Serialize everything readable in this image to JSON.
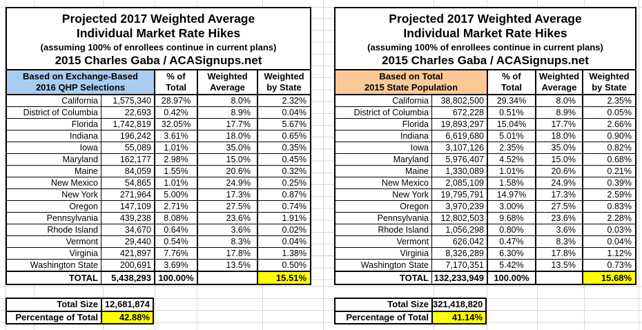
{
  "colors": {
    "header_blue": "#a9cdee",
    "header_orange": "#fbc998",
    "highlight_yellow": "#ffff00",
    "gridline": "#d8d8d8",
    "border": "#000000"
  },
  "tables": [
    {
      "title_lines": [
        "Projected 2017 Weighted Average",
        "Individual Market Rate Hikes"
      ],
      "subtitle": "(assuming 100% of enrollees continue in current plans)",
      "byline": "2015 Charles Gaba / ACASignups.net",
      "group_header": [
        "Based on Exchange-Based",
        "2016 QHP Selections"
      ],
      "group_header_color": "#a9cdee",
      "columns": [
        [
          "% of",
          "Total"
        ],
        [
          "Weighted",
          "Average"
        ],
        [
          "Weighted",
          "by State"
        ]
      ],
      "rows": [
        {
          "state": "California",
          "size": "1,575,340",
          "pct_of_total": "28.97%",
          "weighted_average": "8.0%",
          "weighted_by_state": "2.32%"
        },
        {
          "state": "District of Columbia",
          "size": "22,693",
          "pct_of_total": "0.42%",
          "weighted_average": "8.9%",
          "weighted_by_state": "0.04%"
        },
        {
          "state": "Florida",
          "size": "1,742,819",
          "pct_of_total": "32.05%",
          "weighted_average": "17.7%",
          "weighted_by_state": "5.67%"
        },
        {
          "state": "Indiana",
          "size": "196,242",
          "pct_of_total": "3.61%",
          "weighted_average": "18.0%",
          "weighted_by_state": "0.65%"
        },
        {
          "state": "Iowa",
          "size": "55,089",
          "pct_of_total": "1.01%",
          "weighted_average": "35.0%",
          "weighted_by_state": "0.35%"
        },
        {
          "state": "Maryland",
          "size": "162,177",
          "pct_of_total": "2.98%",
          "weighted_average": "15.0%",
          "weighted_by_state": "0.45%"
        },
        {
          "state": "Maine",
          "size": "84,059",
          "pct_of_total": "1.55%",
          "weighted_average": "20.6%",
          "weighted_by_state": "0.32%"
        },
        {
          "state": "New Mexico",
          "size": "54,865",
          "pct_of_total": "1.01%",
          "weighted_average": "24.9%",
          "weighted_by_state": "0.25%"
        },
        {
          "state": "New York",
          "size": "271,964",
          "pct_of_total": "5.00%",
          "weighted_average": "17.3%",
          "weighted_by_state": "0.87%"
        },
        {
          "state": "Oregon",
          "size": "147,109",
          "pct_of_total": "2.71%",
          "weighted_average": "27.5%",
          "weighted_by_state": "0.74%"
        },
        {
          "state": "Pennsylvania",
          "size": "439,238",
          "pct_of_total": "8.08%",
          "weighted_average": "23.6%",
          "weighted_by_state": "1.91%"
        },
        {
          "state": "Rhode Island",
          "size": "34,670",
          "pct_of_total": "0.64%",
          "weighted_average": "3.6%",
          "weighted_by_state": "0.02%"
        },
        {
          "state": "Vermont",
          "size": "29,440",
          "pct_of_total": "0.54%",
          "weighted_average": "8.3%",
          "weighted_by_state": "0.04%"
        },
        {
          "state": "Virginia",
          "size": "421,897",
          "pct_of_total": "7.76%",
          "weighted_average": "17.8%",
          "weighted_by_state": "1.38%"
        },
        {
          "state": "Washington State",
          "size": "200,691",
          "pct_of_total": "3.69%",
          "weighted_average": "13.5%",
          "weighted_by_state": "0.50%"
        }
      ],
      "total_row": {
        "label": "TOTAL",
        "size": "5,438,293",
        "pct_of_total": "100.00%",
        "weighted_average": "",
        "weighted_by_state": "15.51%"
      },
      "summary": {
        "total_size_label": "Total Size",
        "total_size_value": "12,681,874",
        "pct_of_total_label": "Percentage of Total",
        "pct_of_total_value": "42.88%"
      }
    },
    {
      "title_lines": [
        "Projected 2017 Weighted Average",
        "Individual Market Rate Hikes"
      ],
      "subtitle": "(assuming 100% of enrollees continue in current plans)",
      "byline": "2015 Charles Gaba / ACASignups.net",
      "group_header": [
        "Based on Total",
        "2015 State Population"
      ],
      "group_header_color": "#fbc998",
      "columns": [
        [
          "% of",
          "Total"
        ],
        [
          "Weighted",
          "Average"
        ],
        [
          "Weighted",
          "by State"
        ]
      ],
      "rows": [
        {
          "state": "California",
          "size": "38,802,500",
          "pct_of_total": "29.34%",
          "weighted_average": "8.0%",
          "weighted_by_state": "2.35%"
        },
        {
          "state": "District of Columbia",
          "size": "672,228",
          "pct_of_total": "0.51%",
          "weighted_average": "8.9%",
          "weighted_by_state": "0.05%"
        },
        {
          "state": "Florida",
          "size": "19,893,297",
          "pct_of_total": "15.04%",
          "weighted_average": "17.7%",
          "weighted_by_state": "2.66%"
        },
        {
          "state": "Indiana",
          "size": "6,619,680",
          "pct_of_total": "5.01%",
          "weighted_average": "18.0%",
          "weighted_by_state": "0.90%"
        },
        {
          "state": "Iowa",
          "size": "3,107,126",
          "pct_of_total": "2.35%",
          "weighted_average": "35.0%",
          "weighted_by_state": "0.82%"
        },
        {
          "state": "Maryland",
          "size": "5,976,407",
          "pct_of_total": "4.52%",
          "weighted_average": "15.0%",
          "weighted_by_state": "0.68%"
        },
        {
          "state": "Maine",
          "size": "1,330,089",
          "pct_of_total": "1.01%",
          "weighted_average": "20.6%",
          "weighted_by_state": "0.21%"
        },
        {
          "state": "New Mexico",
          "size": "2,085,109",
          "pct_of_total": "1.58%",
          "weighted_average": "24.9%",
          "weighted_by_state": "0.39%"
        },
        {
          "state": "New York",
          "size": "19,795,791",
          "pct_of_total": "14.97%",
          "weighted_average": "17.3%",
          "weighted_by_state": "2.59%"
        },
        {
          "state": "Oregon",
          "size": "3,970,239",
          "pct_of_total": "3.00%",
          "weighted_average": "27.5%",
          "weighted_by_state": "0.83%"
        },
        {
          "state": "Pennsylvania",
          "size": "12,802,503",
          "pct_of_total": "9.68%",
          "weighted_average": "23.6%",
          "weighted_by_state": "2.28%"
        },
        {
          "state": "Rhode Island",
          "size": "1,056,298",
          "pct_of_total": "0.80%",
          "weighted_average": "3.6%",
          "weighted_by_state": "0.03%"
        },
        {
          "state": "Vermont",
          "size": "626,042",
          "pct_of_total": "0.47%",
          "weighted_average": "8.3%",
          "weighted_by_state": "0.04%"
        },
        {
          "state": "Virginia",
          "size": "8,326,289",
          "pct_of_total": "6.30%",
          "weighted_average": "17.8%",
          "weighted_by_state": "1.12%"
        },
        {
          "state": "Washington State",
          "size": "7,170,351",
          "pct_of_total": "5.42%",
          "weighted_average": "13.5%",
          "weighted_by_state": "0.73%"
        }
      ],
      "total_row": {
        "label": "TOTAL",
        "size": "132,233,949",
        "pct_of_total": "100.00%",
        "weighted_average": "",
        "weighted_by_state": "15.68%"
      },
      "summary": {
        "total_size_label": "Total Size",
        "total_size_value": "321,418,820",
        "pct_of_total_label": "Percentage of Total",
        "pct_of_total_value": "41.14%"
      }
    }
  ]
}
